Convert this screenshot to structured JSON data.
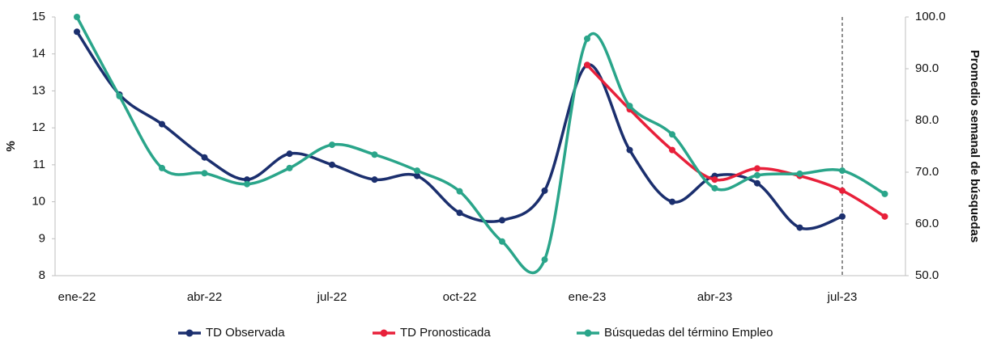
{
  "chart_data": {
    "type": "line",
    "ylabel": "%",
    "y2label": "Promedio semanal de búsquedas",
    "categories": [
      "ene-22",
      null,
      null,
      "abr-22",
      null,
      null,
      "jul-22",
      null,
      null,
      "oct-22",
      null,
      null,
      "ene-23",
      null,
      null,
      "abr-23",
      null,
      null,
      "jul-23",
      null
    ],
    "ylim": [
      8,
      15
    ],
    "yticks": [
      8,
      9,
      10,
      11,
      12,
      13,
      14,
      15
    ],
    "y2lim": [
      50,
      100
    ],
    "y2ticks": [
      {
        "value": 50,
        "label": "50.0"
      },
      {
        "value": 60,
        "label": "60.0"
      },
      {
        "value": 70,
        "label": "70.0"
      },
      {
        "value": 80,
        "label": "80.0"
      },
      {
        "value": 90,
        "label": "90.0"
      },
      {
        "value": 100,
        "label": "100.0"
      }
    ],
    "legend": "bottom",
    "series": [
      {
        "name": "TD Observada",
        "color": "#1b2f6e",
        "values": [
          14.6,
          12.9,
          12.1,
          11.2,
          10.6,
          11.3,
          11.0,
          10.6,
          10.7,
          9.7,
          9.5,
          10.3,
          13.7,
          11.4,
          10.0,
          10.7,
          10.5,
          9.3,
          9.6,
          null
        ]
      },
      {
        "name": "TD Pronosticada",
        "color": "#e8203a",
        "values": [
          null,
          null,
          null,
          null,
          null,
          null,
          null,
          null,
          null,
          null,
          null,
          null,
          13.7,
          12.5,
          11.4,
          10.6,
          10.9,
          10.7,
          10.3,
          9.6
        ]
      },
      {
        "name": "Búsquedas del término Empleo",
        "color": "#2aa58a",
        "axis": "y2",
        "values": [
          100,
          84.7,
          70.8,
          69.8,
          67.7,
          70.8,
          75.3,
          73.4,
          70.3,
          66.3,
          56.6,
          53.1,
          95.8,
          82.8,
          77.3,
          66.9,
          69.4,
          69.7,
          70.3,
          65.8
        ]
      }
    ]
  }
}
